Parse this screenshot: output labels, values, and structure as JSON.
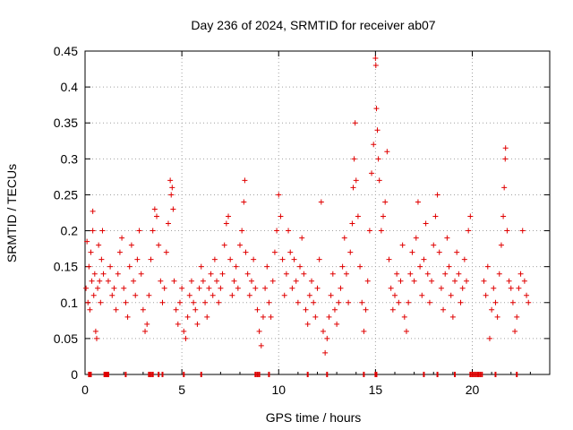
{
  "chart_data": {
    "type": "scatter",
    "title": "Day 236 of 2024, SRMTID for receiver ab07",
    "xlabel": "GPS time / hours",
    "ylabel": "SRMTID / TECUs",
    "xlim": [
      0,
      24
    ],
    "ylim": [
      0,
      0.45
    ],
    "xticks": [
      0,
      5,
      10,
      15,
      20
    ],
    "xtick_labels": [
      "0",
      "5",
      "10",
      "15",
      "20"
    ],
    "yticks": [
      0,
      0.05,
      0.1,
      0.15,
      0.2,
      0.25,
      0.3,
      0.35,
      0.4,
      0.45
    ],
    "ytick_labels": [
      "0",
      "0.05",
      "0.1",
      "0.15",
      "0.2",
      "0.25",
      "0.3",
      "0.35",
      "0.4",
      "0.45"
    ],
    "grid": true,
    "marker": "plus",
    "color": "#e00000",
    "series": [
      {
        "name": "SRMTID",
        "points": [
          [
            0.05,
            0.12
          ],
          [
            0.1,
            0.185
          ],
          [
            0.15,
            0.1
          ],
          [
            0.2,
            0.15
          ],
          [
            0.25,
            0.09
          ],
          [
            0.3,
            0.17
          ],
          [
            0.35,
            0.13
          ],
          [
            0.4,
            0.2
          ],
          [
            0.45,
            0.11
          ],
          [
            0.5,
            0.14
          ],
          [
            0.55,
            0.06
          ],
          [
            0.6,
            0.05
          ],
          [
            0.65,
            0.12
          ],
          [
            0.7,
            0.18
          ],
          [
            0.75,
            0.13
          ],
          [
            0.8,
            0.1
          ],
          [
            0.85,
            0.16
          ],
          [
            0.9,
            0.2
          ],
          [
            0.95,
            0.14
          ],
          [
            0.4,
            0.227
          ],
          [
            1.2,
            0.13
          ],
          [
            1.3,
            0.15
          ],
          [
            1.4,
            0.11
          ],
          [
            1.5,
            0.12
          ],
          [
            1.6,
            0.09
          ],
          [
            1.7,
            0.14
          ],
          [
            1.8,
            0.17
          ],
          [
            1.9,
            0.19
          ],
          [
            2.0,
            0.12
          ],
          [
            2.1,
            0.1
          ],
          [
            2.2,
            0.08
          ],
          [
            2.3,
            0.15
          ],
          [
            2.4,
            0.18
          ],
          [
            2.5,
            0.13
          ],
          [
            2.6,
            0.11
          ],
          [
            2.7,
            0.16
          ],
          [
            2.8,
            0.2
          ],
          [
            2.9,
            0.14
          ],
          [
            3.0,
            0.09
          ],
          [
            3.1,
            0.06
          ],
          [
            3.2,
            0.07
          ],
          [
            3.3,
            0.11
          ],
          [
            3.4,
            0.16
          ],
          [
            3.5,
            0.2
          ],
          [
            3.6,
            0.23
          ],
          [
            3.7,
            0.22
          ],
          [
            3.8,
            0.18
          ],
          [
            3.9,
            0.13
          ],
          [
            4.0,
            0.1
          ],
          [
            4.1,
            0.12
          ],
          [
            4.2,
            0.17
          ],
          [
            4.3,
            0.21
          ],
          [
            4.4,
            0.27
          ],
          [
            4.45,
            0.25
          ],
          [
            4.5,
            0.26
          ],
          [
            4.55,
            0.23
          ],
          [
            4.6,
            0.13
          ],
          [
            4.7,
            0.09
          ],
          [
            4.8,
            0.07
          ],
          [
            4.9,
            0.1
          ],
          [
            5.0,
            0.12
          ],
          [
            5.1,
            0.06
          ],
          [
            5.2,
            0.05
          ],
          [
            5.3,
            0.08
          ],
          [
            5.4,
            0.11
          ],
          [
            5.5,
            0.13
          ],
          [
            5.6,
            0.1
          ],
          [
            5.7,
            0.09
          ],
          [
            5.8,
            0.07
          ],
          [
            5.9,
            0.12
          ],
          [
            6.0,
            0.15
          ],
          [
            6.1,
            0.13
          ],
          [
            6.2,
            0.1
          ],
          [
            6.3,
            0.08
          ],
          [
            6.4,
            0.12
          ],
          [
            6.5,
            0.14
          ],
          [
            6.6,
            0.11
          ],
          [
            6.7,
            0.16
          ],
          [
            6.8,
            0.13
          ],
          [
            6.9,
            0.1
          ],
          [
            7.0,
            0.12
          ],
          [
            7.1,
            0.14
          ],
          [
            7.2,
            0.18
          ],
          [
            7.3,
            0.21
          ],
          [
            7.4,
            0.22
          ],
          [
            7.5,
            0.16
          ],
          [
            7.6,
            0.11
          ],
          [
            7.7,
            0.13
          ],
          [
            7.8,
            0.15
          ],
          [
            7.9,
            0.12
          ],
          [
            8.0,
            0.18
          ],
          [
            8.1,
            0.2
          ],
          [
            8.2,
            0.24
          ],
          [
            8.25,
            0.27
          ],
          [
            8.3,
            0.17
          ],
          [
            8.4,
            0.14
          ],
          [
            8.5,
            0.11
          ],
          [
            8.6,
            0.13
          ],
          [
            8.7,
            0.16
          ],
          [
            8.8,
            0.12
          ],
          [
            8.9,
            0.09
          ],
          [
            9.0,
            0.06
          ],
          [
            9.1,
            0.04
          ],
          [
            9.2,
            0.08
          ],
          [
            9.3,
            0.12
          ],
          [
            9.4,
            0.15
          ],
          [
            9.5,
            0.1
          ],
          [
            9.6,
            0.08
          ],
          [
            9.7,
            0.13
          ],
          [
            9.8,
            0.17
          ],
          [
            9.9,
            0.2
          ],
          [
            10.0,
            0.25
          ],
          [
            10.1,
            0.22
          ],
          [
            10.2,
            0.16
          ],
          [
            10.3,
            0.11
          ],
          [
            10.4,
            0.14
          ],
          [
            10.5,
            0.2
          ],
          [
            10.6,
            0.17
          ],
          [
            10.7,
            0.12
          ],
          [
            10.8,
            0.16
          ],
          [
            10.9,
            0.13
          ],
          [
            11.0,
            0.1
          ],
          [
            11.1,
            0.15
          ],
          [
            11.2,
            0.19
          ],
          [
            11.3,
            0.14
          ],
          [
            11.4,
            0.09
          ],
          [
            11.5,
            0.07
          ],
          [
            11.6,
            0.11
          ],
          [
            11.7,
            0.13
          ],
          [
            11.8,
            0.1
          ],
          [
            11.9,
            0.08
          ],
          [
            12.0,
            0.12
          ],
          [
            12.1,
            0.16
          ],
          [
            12.2,
            0.24
          ],
          [
            12.3,
            0.06
          ],
          [
            12.4,
            0.03
          ],
          [
            12.5,
            0.05
          ],
          [
            12.6,
            0.08
          ],
          [
            12.7,
            0.11
          ],
          [
            12.8,
            0.14
          ],
          [
            12.9,
            0.09
          ],
          [
            13.0,
            0.07
          ],
          [
            13.1,
            0.1
          ],
          [
            13.2,
            0.12
          ],
          [
            13.3,
            0.15
          ],
          [
            13.4,
            0.19
          ],
          [
            13.5,
            0.14
          ],
          [
            13.6,
            0.1
          ],
          [
            13.7,
            0.17
          ],
          [
            13.8,
            0.21
          ],
          [
            13.85,
            0.26
          ],
          [
            13.9,
            0.3
          ],
          [
            13.95,
            0.35
          ],
          [
            14.0,
            0.27
          ],
          [
            14.1,
            0.22
          ],
          [
            14.2,
            0.15
          ],
          [
            14.3,
            0.1
          ],
          [
            14.4,
            0.06
          ],
          [
            14.5,
            0.09
          ],
          [
            14.6,
            0.13
          ],
          [
            14.7,
            0.2
          ],
          [
            14.8,
            0.28
          ],
          [
            14.9,
            0.32
          ],
          [
            15.0,
            0.44
          ],
          [
            15.02,
            0.43
          ],
          [
            15.05,
            0.37
          ],
          [
            15.1,
            0.34
          ],
          [
            15.15,
            0.3
          ],
          [
            15.2,
            0.27
          ],
          [
            15.3,
            0.2
          ],
          [
            15.4,
            0.22
          ],
          [
            15.5,
            0.24
          ],
          [
            15.6,
            0.31
          ],
          [
            15.7,
            0.16
          ],
          [
            15.8,
            0.12
          ],
          [
            15.9,
            0.09
          ],
          [
            16.0,
            0.11
          ],
          [
            16.1,
            0.14
          ],
          [
            16.2,
            0.1
          ],
          [
            16.3,
            0.13
          ],
          [
            16.4,
            0.18
          ],
          [
            16.5,
            0.08
          ],
          [
            16.6,
            0.06
          ],
          [
            16.7,
            0.1
          ],
          [
            16.8,
            0.14
          ],
          [
            16.9,
            0.17
          ],
          [
            17.0,
            0.13
          ],
          [
            17.1,
            0.19
          ],
          [
            17.2,
            0.24
          ],
          [
            17.3,
            0.15
          ],
          [
            17.4,
            0.11
          ],
          [
            17.5,
            0.16
          ],
          [
            17.6,
            0.21
          ],
          [
            17.7,
            0.14
          ],
          [
            17.8,
            0.1
          ],
          [
            17.9,
            0.13
          ],
          [
            18.0,
            0.18
          ],
          [
            18.1,
            0.22
          ],
          [
            18.2,
            0.25
          ],
          [
            18.3,
            0.17
          ],
          [
            18.4,
            0.12
          ],
          [
            18.5,
            0.09
          ],
          [
            18.6,
            0.14
          ],
          [
            18.7,
            0.19
          ],
          [
            18.8,
            0.15
          ],
          [
            18.9,
            0.11
          ],
          [
            19.0,
            0.08
          ],
          [
            19.1,
            0.13
          ],
          [
            19.2,
            0.17
          ],
          [
            19.3,
            0.14
          ],
          [
            19.4,
            0.1
          ],
          [
            19.5,
            0.12
          ],
          [
            19.6,
            0.16
          ],
          [
            19.7,
            0.13
          ],
          [
            19.8,
            0.2
          ],
          [
            19.9,
            0.22
          ],
          [
            20.6,
            0.13
          ],
          [
            20.7,
            0.11
          ],
          [
            20.8,
            0.15
          ],
          [
            20.9,
            0.05
          ],
          [
            21.0,
            0.09
          ],
          [
            21.1,
            0.12
          ],
          [
            21.2,
            0.1
          ],
          [
            21.3,
            0.08
          ],
          [
            21.4,
            0.14
          ],
          [
            21.5,
            0.18
          ],
          [
            21.6,
            0.22
          ],
          [
            21.65,
            0.26
          ],
          [
            21.7,
            0.3
          ],
          [
            21.72,
            0.315
          ],
          [
            21.8,
            0.2
          ],
          [
            21.9,
            0.13
          ],
          [
            22.0,
            0.12
          ],
          [
            22.1,
            0.1
          ],
          [
            22.2,
            0.06
          ],
          [
            22.3,
            0.08
          ],
          [
            22.4,
            0.12
          ],
          [
            22.5,
            0.14
          ],
          [
            22.6,
            0.2
          ],
          [
            22.7,
            0.13
          ],
          [
            22.8,
            0.11
          ],
          [
            22.9,
            0.1
          ]
        ]
      }
    ],
    "zero_points": [
      0.2,
      0.25,
      0.3,
      1.0,
      1.05,
      1.1,
      1.15,
      1.2,
      2.1,
      3.3,
      3.4,
      3.5,
      3.8,
      4.0,
      5.1,
      6.0,
      8.8,
      8.9,
      9.0,
      9.5,
      11.5,
      12.5,
      14.4,
      15.0,
      15.05,
      17.5,
      18.2,
      19.1,
      19.9,
      20.0,
      20.1,
      20.2,
      20.3,
      20.4,
      20.5,
      21.2,
      22.3
    ]
  }
}
